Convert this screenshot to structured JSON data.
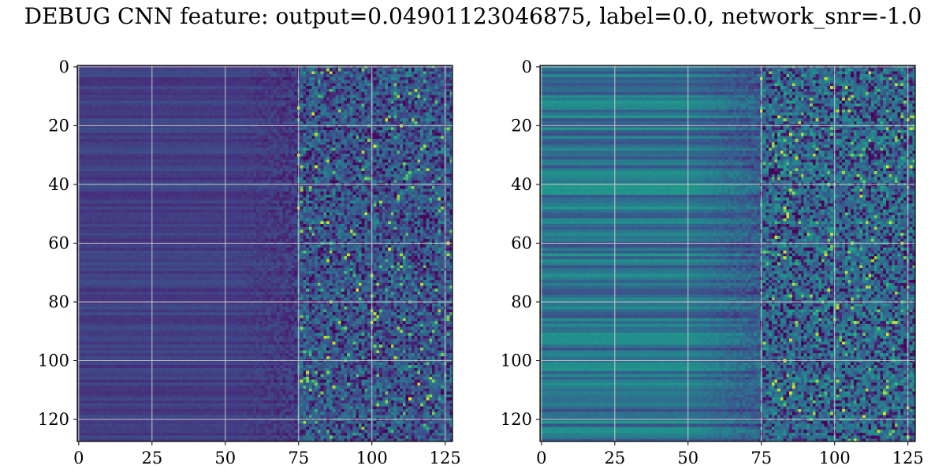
{
  "figure": {
    "title": "DEBUG CNN feature: output=0.04901123046875, label=0.0, network_snr=-1.0"
  },
  "chart_data": [
    {
      "type": "heatmap",
      "colormap": "viridis",
      "matrix_shape": [
        128,
        128
      ],
      "xlim": [
        0,
        127
      ],
      "ylim": [
        127,
        0
      ],
      "xticks": [
        0,
        25,
        50,
        75,
        100,
        125
      ],
      "yticks": [
        0,
        20,
        40,
        60,
        80,
        100,
        120
      ],
      "grid": true,
      "grid_color": "#c8c8c8",
      "description_of_values": "low values (dark purple) on columns 0-60, noisy mixed values with bright yellow-green speckles on columns 75-127",
      "left_value_level": 0.18,
      "right_value_level": 0.3
    },
    {
      "type": "heatmap",
      "colormap": "viridis",
      "matrix_shape": [
        128,
        128
      ],
      "xlim": [
        0,
        127
      ],
      "ylim": [
        127,
        0
      ],
      "xticks": [
        0,
        25,
        50,
        75,
        100,
        125
      ],
      "yticks": [
        0,
        20,
        40,
        60,
        80,
        100,
        120
      ],
      "grid": true,
      "grid_color": "#c8c8c8",
      "description_of_values": "medium values (teal-blue) with horizontal banding on columns 0-60, noisy values with many green/yellow speckles on columns 75-127",
      "left_value_level": 0.38,
      "right_value_level": 0.42
    }
  ]
}
